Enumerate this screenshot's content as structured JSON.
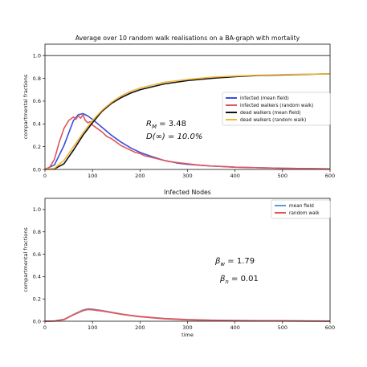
{
  "chart_data": [
    {
      "type": "line",
      "title": "Average over 10 random walk realisations on a BA-graph with mortality",
      "xlabel": "",
      "ylabel": "compartmental fractions",
      "xlim": [
        0,
        600
      ],
      "ylim": [
        0,
        1.1
      ],
      "x_ticks": [
        "0",
        "100",
        "200",
        "300",
        "400",
        "500",
        "600"
      ],
      "y_ticks": [
        "0.0",
        "0.2",
        "0.4",
        "0.6",
        "0.8",
        "1.0"
      ],
      "grid": false,
      "legend_position": "center-right",
      "reference_line_y": 1.0,
      "annotations": [
        "R_M = 3.48",
        "D(∞) = 10.0%"
      ],
      "series": [
        {
          "name": "infected (mean field)",
          "color": "#3a4fd9",
          "x": [
            0,
            20,
            40,
            60,
            70,
            80,
            90,
            100,
            120,
            140,
            160,
            180,
            200,
            220,
            250,
            280,
            300,
            350,
            400,
            450,
            500,
            550,
            600
          ],
          "values": [
            0.0,
            0.04,
            0.21,
            0.43,
            0.48,
            0.49,
            0.47,
            0.44,
            0.37,
            0.3,
            0.24,
            0.19,
            0.15,
            0.12,
            0.08,
            0.055,
            0.045,
            0.03,
            0.02,
            0.015,
            0.01,
            0.008,
            0.005
          ]
        },
        {
          "name": "infected walkers  (random walk)",
          "color": "#e0575a",
          "x": [
            0,
            10,
            20,
            30,
            40,
            50,
            60,
            65,
            70,
            75,
            80,
            85,
            90,
            95,
            100,
            110,
            120,
            130,
            140,
            150,
            160,
            170,
            180,
            190,
            200,
            210,
            220,
            240,
            260,
            280,
            300,
            320,
            350,
            380,
            400,
            450,
            500,
            550,
            600
          ],
          "values": [
            0.0,
            0.02,
            0.09,
            0.24,
            0.36,
            0.43,
            0.46,
            0.44,
            0.47,
            0.45,
            0.48,
            0.43,
            0.41,
            0.42,
            0.39,
            0.36,
            0.33,
            0.29,
            0.27,
            0.24,
            0.21,
            0.19,
            0.17,
            0.15,
            0.14,
            0.12,
            0.11,
            0.09,
            0.07,
            0.06,
            0.05,
            0.04,
            0.03,
            0.025,
            0.02,
            0.015,
            0.01,
            0.008,
            0.005
          ]
        },
        {
          "name": "dead walkers (mean field)",
          "color": "#111111",
          "x": [
            0,
            20,
            40,
            60,
            80,
            100,
            120,
            140,
            160,
            180,
            200,
            250,
            300,
            350,
            400,
            450,
            500,
            550,
            600
          ],
          "values": [
            0.0,
            0.005,
            0.05,
            0.17,
            0.3,
            0.41,
            0.51,
            0.58,
            0.63,
            0.67,
            0.7,
            0.75,
            0.78,
            0.8,
            0.815,
            0.825,
            0.83,
            0.835,
            0.84
          ]
        },
        {
          "name": "dead walkers (random walk)",
          "color": "#f1b73a",
          "x": [
            0,
            20,
            40,
            60,
            80,
            100,
            120,
            140,
            160,
            180,
            200,
            250,
            300,
            350,
            400,
            450,
            500,
            550,
            600
          ],
          "values": [
            0.0,
            0.01,
            0.08,
            0.2,
            0.32,
            0.43,
            0.52,
            0.59,
            0.645,
            0.685,
            0.715,
            0.765,
            0.79,
            0.81,
            0.82,
            0.828,
            0.833,
            0.837,
            0.84
          ]
        }
      ]
    },
    {
      "type": "line",
      "title": "Infected Nodes",
      "xlabel": "time",
      "ylabel": "compartmental fractions",
      "xlim": [
        0,
        600
      ],
      "ylim": [
        0,
        1.1
      ],
      "x_ticks": [
        "0",
        "100",
        "200",
        "300",
        "400",
        "500",
        "600"
      ],
      "y_ticks": [
        "0.0",
        "0.2",
        "0.4",
        "0.6",
        "0.8",
        "1.0"
      ],
      "grid": false,
      "legend_position": "top-right",
      "annotations": [
        "β_w = 1.79",
        "β_n = 0.01"
      ],
      "series": [
        {
          "name": "mean field",
          "color": "#5a9bd4",
          "x": [
            0,
            20,
            40,
            60,
            80,
            90,
            100,
            120,
            140,
            160,
            180,
            200,
            250,
            300,
            350,
            400,
            450,
            500,
            550,
            600
          ],
          "values": [
            0.0,
            0.002,
            0.015,
            0.06,
            0.1,
            0.11,
            0.108,
            0.095,
            0.08,
            0.065,
            0.052,
            0.042,
            0.024,
            0.014,
            0.009,
            0.006,
            0.004,
            0.003,
            0.002,
            0.001
          ]
        },
        {
          "name": "random walk",
          "color": "#e0575a",
          "x": [
            0,
            20,
            40,
            60,
            80,
            90,
            100,
            120,
            140,
            160,
            180,
            200,
            250,
            300,
            350,
            400,
            450,
            500,
            550,
            600
          ],
          "values": [
            0.0,
            0.002,
            0.016,
            0.058,
            0.095,
            0.105,
            0.103,
            0.092,
            0.078,
            0.063,
            0.051,
            0.041,
            0.023,
            0.013,
            0.008,
            0.005,
            0.004,
            0.003,
            0.002,
            0.001
          ]
        }
      ]
    }
  ]
}
